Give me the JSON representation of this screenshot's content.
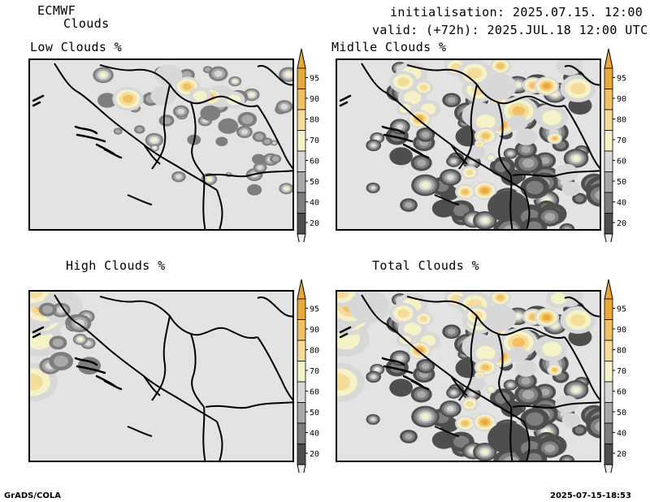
{
  "header": {
    "model": "ECMWF",
    "product": "Clouds",
    "init_line": "initialisation: 2025.07.15. 12:00 UTC",
    "valid_line": "valid: (+72h): 2025.JUL.18 12:00 UTC"
  },
  "panels": [
    {
      "key": "low",
      "title": "Low Clouds %"
    },
    {
      "key": "middle",
      "title": "Midlle Clouds %"
    },
    {
      "key": "high",
      "title": "High Clouds %"
    },
    {
      "key": "total",
      "title": "Total Clouds %"
    }
  ],
  "colorbar": {
    "levels": [
      "95",
      "90",
      "80",
      "70",
      "60",
      "50",
      "40",
      "20"
    ],
    "colors": [
      "#e8a93a",
      "#f0c062",
      "#f5dc9a",
      "#f5f2c8",
      "#d8d8d8",
      "#a9a9a9",
      "#7e7e7e",
      "#4e4e4e"
    ],
    "arrow_top": "#e8a93a",
    "arrow_bottom": "#ececec"
  },
  "footer": {
    "left": "GrADS/COLA",
    "right": "2025-07-15-18:53"
  }
}
